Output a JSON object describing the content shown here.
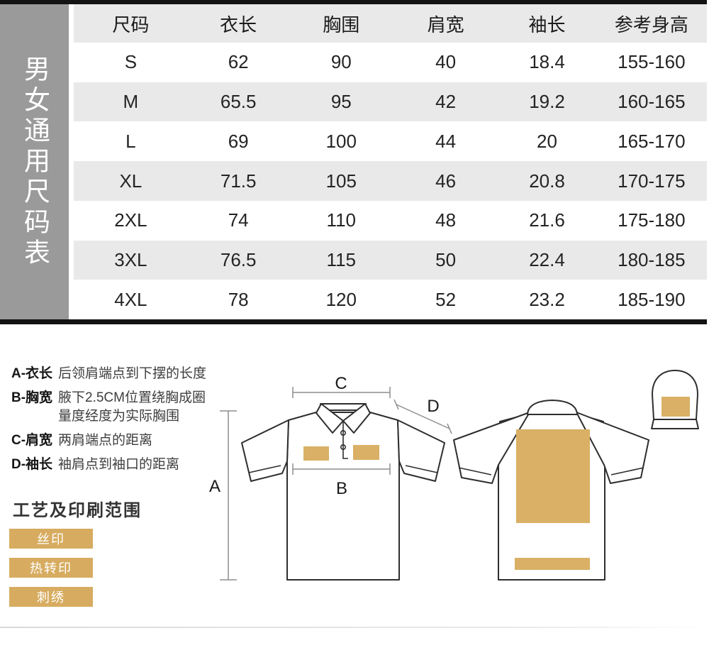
{
  "sidebar": {
    "title": "男女通用尺码表"
  },
  "size_table": {
    "headers": [
      "尺码",
      "衣长",
      "胸围",
      "肩宽",
      "袖长",
      "参考身高"
    ],
    "rows": [
      [
        "S",
        "62",
        "90",
        "40",
        "18.4",
        "155-160"
      ],
      [
        "M",
        "65.5",
        "95",
        "42",
        "19.2",
        "160-165"
      ],
      [
        "L",
        "69",
        "100",
        "44",
        "20",
        "165-170"
      ],
      [
        "XL",
        "71.5",
        "105",
        "46",
        "20.8",
        "170-175"
      ],
      [
        "2XL",
        "74",
        "110",
        "48",
        "21.6",
        "175-180"
      ],
      [
        "3XL",
        "76.5",
        "115",
        "50",
        "22.4",
        "180-185"
      ],
      [
        "4XL",
        "78",
        "120",
        "52",
        "23.2",
        "185-190"
      ]
    ]
  },
  "measure_guide": {
    "items": [
      {
        "label": "A-衣长",
        "desc": "后领肩端点到下摆的长度"
      },
      {
        "label": "B-胸宽",
        "desc": "腋下2.5CM位置绕胸成圈\n量度经度为实际胸围"
      },
      {
        "label": "C-肩宽",
        "desc": "两肩端点的距离"
      },
      {
        "label": "D-袖长",
        "desc": "袖肩点到袖口的距离"
      }
    ]
  },
  "print_section": {
    "title": "工艺及印刷范围",
    "methods": [
      "丝印",
      "热转印",
      "刺绣"
    ]
  },
  "diagram": {
    "labels": {
      "a": "A",
      "b": "B",
      "c": "C",
      "d": "D"
    }
  },
  "colors": {
    "print_area_tan": "#d9b065",
    "button_tan": "#d7ac60",
    "sidebar_gray": "#9a9a9a",
    "row_alt_gray": "#e9e9e9",
    "border_black": "#131313"
  }
}
